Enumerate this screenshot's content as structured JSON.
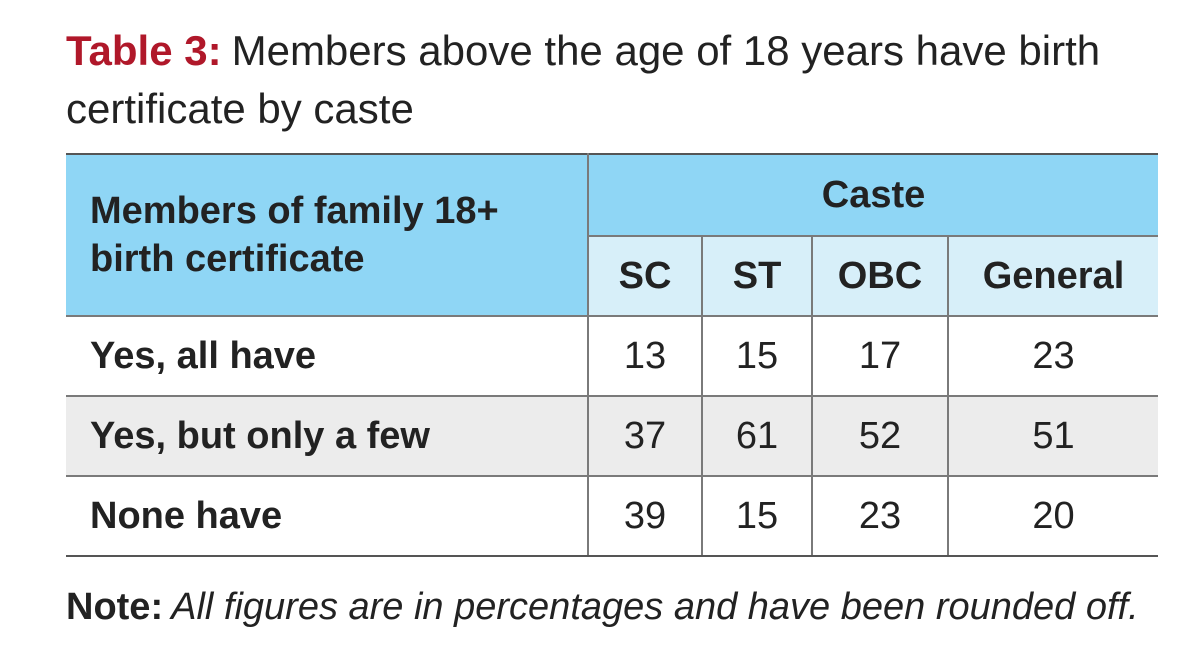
{
  "title": {
    "tag": "Table 3:",
    "text": "Members above the age of 18 years have birth certificate by caste"
  },
  "table": {
    "row_header": "Members of family 18+ birth certificate",
    "group_header": "Caste",
    "columns": [
      "SC",
      "ST",
      "OBC",
      "General"
    ],
    "rows": [
      {
        "label": "Yes, all have",
        "values": [
          "13",
          "15",
          "17",
          "23"
        ]
      },
      {
        "label": "Yes, but only a few",
        "values": [
          "37",
          "61",
          "52",
          "51"
        ]
      },
      {
        "label": "None have",
        "values": [
          "39",
          "15",
          "23",
          "20"
        ]
      }
    ]
  },
  "note": {
    "label": "Note:",
    "text": "All figures are in percentages and have been rounded off."
  },
  "colors": {
    "header_blue": "#8fd6f5",
    "subheader_blue": "#d7eff9",
    "title_red": "#b0182a",
    "shaded_row": "#ececec"
  }
}
